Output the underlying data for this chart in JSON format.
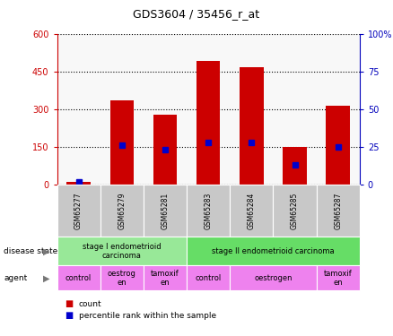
{
  "title": "GDS3604 / 35456_r_at",
  "samples": [
    "GSM65277",
    "GSM65279",
    "GSM65281",
    "GSM65283",
    "GSM65284",
    "GSM65285",
    "GSM65287"
  ],
  "count_values": [
    12,
    335,
    280,
    490,
    465,
    152,
    315
  ],
  "percentile_values": [
    2,
    26,
    23,
    28,
    28,
    13,
    25
  ],
  "ylim_left": [
    0,
    600
  ],
  "ylim_right": [
    0,
    100
  ],
  "yticks_left": [
    0,
    150,
    300,
    450,
    600
  ],
  "yticks_right": [
    0,
    25,
    50,
    75,
    100
  ],
  "disease_state_groups": [
    {
      "label": "stage I endometrioid\ncarcinoma",
      "start": 0,
      "end": 3,
      "color": "#98E898"
    },
    {
      "label": "stage II endometrioid carcinoma",
      "start": 3,
      "end": 7,
      "color": "#66DD66"
    }
  ],
  "agent_groups": [
    {
      "label": "control",
      "start": 0,
      "end": 1,
      "color": "#EE82EE"
    },
    {
      "label": "oestrog\nen",
      "start": 1,
      "end": 2,
      "color": "#EE82EE"
    },
    {
      "label": "tamoxif\nen",
      "start": 2,
      "end": 3,
      "color": "#EE82EE"
    },
    {
      "label": "control",
      "start": 3,
      "end": 4,
      "color": "#EE82EE"
    },
    {
      "label": "oestrogen",
      "start": 4,
      "end": 6,
      "color": "#EE82EE"
    },
    {
      "label": "tamoxif\nen",
      "start": 6,
      "end": 7,
      "color": "#EE82EE"
    }
  ],
  "bar_color": "#CC0000",
  "percentile_color": "#0000CC",
  "tick_label_color_left": "#CC0000",
  "tick_label_color_right": "#0000BB",
  "bg_color": "#FFFFFF",
  "plot_bg_color": "#F8F8F8",
  "bar_width": 0.55,
  "sample_row_color": "#C8C8C8"
}
